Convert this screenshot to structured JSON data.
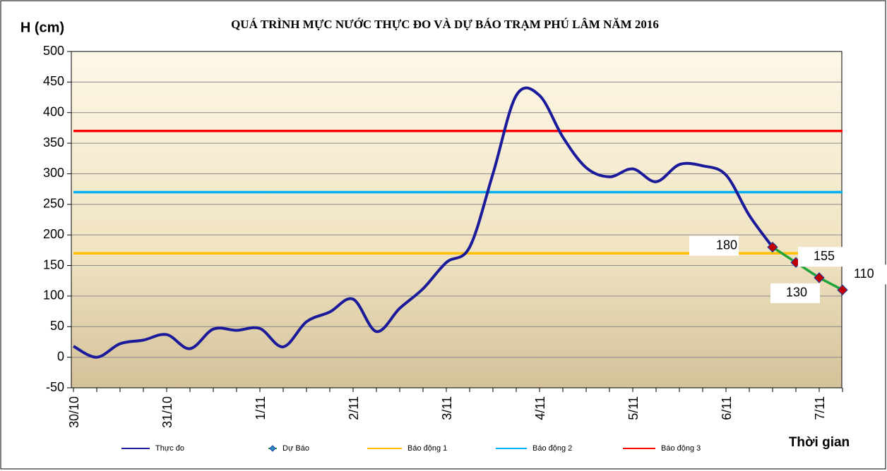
{
  "chart_data": {
    "type": "line",
    "title": "QUÁ TRÌNH MỰC NƯỚC THỰC ĐO VÀ DỰ BÁO TRẠM  PHÚ LÂM NĂM 2016",
    "y_label": "H (cm)",
    "x_label": "Thời gian",
    "categories": [
      "30/10",
      null,
      null,
      null,
      "31/10",
      null,
      null,
      null,
      "1/11",
      null,
      null,
      null,
      "2/11",
      null,
      null,
      null,
      "3/11",
      null,
      null,
      null,
      "4/11",
      null,
      null,
      null,
      "5/11",
      null,
      null,
      null,
      "6/11",
      null,
      null,
      null,
      "7/11",
      null
    ],
    "ylim": [
      -50,
      500
    ],
    "yticks": [
      -50,
      0,
      50,
      100,
      150,
      200,
      250,
      300,
      350,
      400,
      450,
      500
    ],
    "grid": true,
    "legend": "bottom",
    "series": [
      {
        "name": "Thực đo",
        "color": "#1a1a9a",
        "smooth": true,
        "values": [
          18,
          0,
          22,
          28,
          37,
          14,
          46,
          44,
          47,
          17,
          58,
          74,
          95,
          42,
          80,
          112,
          155,
          180,
          300,
          428,
          428,
          360,
          310,
          295,
          308,
          287,
          315,
          313,
          298,
          232,
          180,
          null,
          null,
          null
        ]
      },
      {
        "name": "Dự Báo",
        "color": "#22a33a",
        "marker": "diamond",
        "marker_color": "#c00000",
        "data_labels": true,
        "values": [
          null,
          null,
          null,
          null,
          null,
          null,
          null,
          null,
          null,
          null,
          null,
          null,
          null,
          null,
          null,
          null,
          null,
          null,
          null,
          null,
          null,
          null,
          null,
          null,
          null,
          null,
          null,
          null,
          null,
          null,
          180,
          155,
          130,
          110
        ]
      },
      {
        "name": "Báo động 1",
        "color": "#ffc000",
        "values": [
          170,
          170,
          170,
          170,
          170,
          170,
          170,
          170,
          170,
          170,
          170,
          170,
          170,
          170,
          170,
          170,
          170,
          170,
          170,
          170,
          170,
          170,
          170,
          170,
          170,
          170,
          170,
          170,
          170,
          170,
          170,
          170,
          170,
          170
        ]
      },
      {
        "name": "Báo động 2",
        "color": "#00b0f0",
        "values": [
          270,
          270,
          270,
          270,
          270,
          270,
          270,
          270,
          270,
          270,
          270,
          270,
          270,
          270,
          270,
          270,
          270,
          270,
          270,
          270,
          270,
          270,
          270,
          270,
          270,
          270,
          270,
          270,
          270,
          270,
          270,
          270,
          270,
          270
        ]
      },
      {
        "name": "Báo động 3",
        "color": "#ff0000",
        "values": [
          370,
          370,
          370,
          370,
          370,
          370,
          370,
          370,
          370,
          370,
          370,
          370,
          370,
          370,
          370,
          370,
          370,
          370,
          370,
          370,
          370,
          370,
          370,
          370,
          370,
          370,
          370,
          370,
          370,
          370,
          370,
          370,
          370,
          370
        ]
      }
    ]
  }
}
